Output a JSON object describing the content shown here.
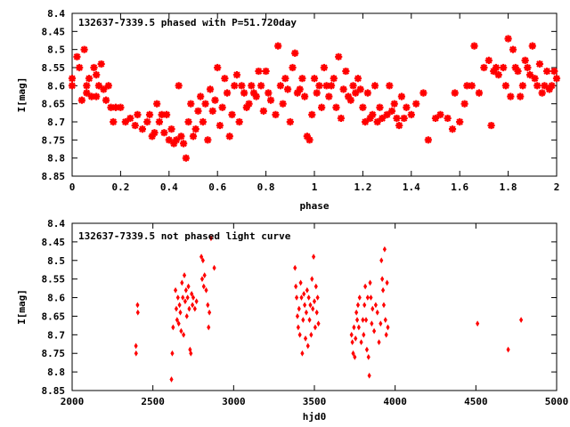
{
  "chart_data": [
    {
      "type": "scatter",
      "title": "132637-7339.5 phased with P=51.720day",
      "xlabel": "phase",
      "ylabel": "I[mag]",
      "xlim": [
        0,
        2
      ],
      "ylim": [
        8.4,
        8.85
      ],
      "y_inverted": true,
      "x_ticks": [
        "0",
        "0.2",
        "0.4",
        "0.6",
        "0.8",
        "1",
        "1.2",
        "1.4",
        "1.6",
        "1.8",
        "2"
      ],
      "y_ticks": [
        "8.4",
        "8.45",
        "8.5",
        "8.55",
        "8.6",
        "8.65",
        "8.7",
        "8.75",
        "8.8",
        "8.85"
      ],
      "grid": false,
      "marker": "star",
      "color": "#ff0000",
      "points": [
        [
          0.0,
          8.58
        ],
        [
          0.0,
          8.6
        ],
        [
          0.02,
          8.52
        ],
        [
          0.03,
          8.55
        ],
        [
          0.04,
          8.64
        ],
        [
          0.05,
          8.5
        ],
        [
          0.06,
          8.6
        ],
        [
          0.06,
          8.62
        ],
        [
          0.07,
          8.58
        ],
        [
          0.08,
          8.63
        ],
        [
          0.09,
          8.55
        ],
        [
          0.1,
          8.57
        ],
        [
          0.1,
          8.63
        ],
        [
          0.11,
          8.6
        ],
        [
          0.12,
          8.54
        ],
        [
          0.13,
          8.61
        ],
        [
          0.14,
          8.64
        ],
        [
          0.15,
          8.6
        ],
        [
          0.16,
          8.66
        ],
        [
          0.17,
          8.7
        ],
        [
          0.18,
          8.66
        ],
        [
          0.2,
          8.66
        ],
        [
          0.22,
          8.7
        ],
        [
          0.24,
          8.69
        ],
        [
          0.26,
          8.71
        ],
        [
          0.27,
          8.68
        ],
        [
          0.29,
          8.72
        ],
        [
          0.31,
          8.7
        ],
        [
          0.32,
          8.68
        ],
        [
          0.33,
          8.74
        ],
        [
          0.34,
          8.73
        ],
        [
          0.35,
          8.65
        ],
        [
          0.36,
          8.7
        ],
        [
          0.37,
          8.68
        ],
        [
          0.38,
          8.73
        ],
        [
          0.39,
          8.68
        ],
        [
          0.4,
          8.75
        ],
        [
          0.41,
          8.72
        ],
        [
          0.42,
          8.76
        ],
        [
          0.43,
          8.75
        ],
        [
          0.44,
          8.6
        ],
        [
          0.45,
          8.74
        ],
        [
          0.46,
          8.76
        ],
        [
          0.47,
          8.8
        ],
        [
          0.48,
          8.7
        ],
        [
          0.49,
          8.65
        ],
        [
          0.5,
          8.74
        ],
        [
          0.51,
          8.72
        ],
        [
          0.52,
          8.67
        ],
        [
          0.53,
          8.63
        ],
        [
          0.54,
          8.7
        ],
        [
          0.55,
          8.65
        ],
        [
          0.56,
          8.75
        ],
        [
          0.57,
          8.61
        ],
        [
          0.58,
          8.67
        ],
        [
          0.59,
          8.64
        ],
        [
          0.6,
          8.55
        ],
        [
          0.61,
          8.71
        ],
        [
          0.62,
          8.66
        ],
        [
          0.63,
          8.58
        ],
        [
          0.64,
          8.62
        ],
        [
          0.65,
          8.74
        ],
        [
          0.66,
          8.68
        ],
        [
          0.67,
          8.6
        ],
        [
          0.68,
          8.57
        ],
        [
          0.69,
          8.7
        ],
        [
          0.7,
          8.6
        ],
        [
          0.71,
          8.62
        ],
        [
          0.72,
          8.66
        ],
        [
          0.73,
          8.65
        ],
        [
          0.74,
          8.6
        ],
        [
          0.75,
          8.62
        ],
        [
          0.76,
          8.63
        ],
        [
          0.77,
          8.56
        ],
        [
          0.78,
          8.6
        ],
        [
          0.79,
          8.67
        ],
        [
          0.8,
          8.56
        ],
        [
          0.81,
          8.62
        ],
        [
          0.82,
          8.64
        ],
        [
          0.84,
          8.68
        ],
        [
          0.85,
          8.49
        ],
        [
          0.86,
          8.6
        ],
        [
          0.87,
          8.65
        ],
        [
          0.88,
          8.58
        ],
        [
          0.89,
          8.61
        ],
        [
          0.9,
          8.7
        ],
        [
          0.91,
          8.55
        ],
        [
          0.92,
          8.51
        ],
        [
          0.93,
          8.62
        ],
        [
          0.94,
          8.61
        ],
        [
          0.95,
          8.58
        ],
        [
          0.96,
          8.63
        ],
        [
          0.97,
          8.74
        ],
        [
          0.98,
          8.75
        ],
        [
          0.99,
          8.68
        ],
        [
          1.0,
          8.58
        ],
        [
          1.01,
          8.62
        ],
        [
          1.02,
          8.6
        ],
        [
          1.03,
          8.66
        ],
        [
          1.04,
          8.55
        ],
        [
          1.05,
          8.6
        ],
        [
          1.06,
          8.63
        ],
        [
          1.07,
          8.6
        ],
        [
          1.08,
          8.58
        ],
        [
          1.09,
          8.66
        ],
        [
          1.1,
          8.52
        ],
        [
          1.11,
          8.69
        ],
        [
          1.12,
          8.61
        ],
        [
          1.13,
          8.56
        ],
        [
          1.14,
          8.63
        ],
        [
          1.15,
          8.64
        ],
        [
          1.16,
          8.6
        ],
        [
          1.17,
          8.62
        ],
        [
          1.18,
          8.58
        ],
        [
          1.19,
          8.61
        ],
        [
          1.2,
          8.66
        ],
        [
          1.21,
          8.7
        ],
        [
          1.22,
          8.62
        ],
        [
          1.23,
          8.69
        ],
        [
          1.24,
          8.68
        ],
        [
          1.25,
          8.6
        ],
        [
          1.26,
          8.7
        ],
        [
          1.27,
          8.66
        ],
        [
          1.28,
          8.69
        ],
        [
          1.3,
          8.68
        ],
        [
          1.31,
          8.6
        ],
        [
          1.32,
          8.67
        ],
        [
          1.33,
          8.65
        ],
        [
          1.34,
          8.69
        ],
        [
          1.35,
          8.71
        ],
        [
          1.36,
          8.63
        ],
        [
          1.37,
          8.69
        ],
        [
          1.38,
          8.66
        ],
        [
          1.4,
          8.68
        ],
        [
          1.42,
          8.65
        ],
        [
          1.45,
          8.62
        ],
        [
          1.47,
          8.75
        ],
        [
          1.5,
          8.69
        ],
        [
          1.52,
          8.68
        ],
        [
          1.55,
          8.69
        ],
        [
          1.57,
          8.72
        ],
        [
          1.58,
          8.62
        ],
        [
          1.6,
          8.7
        ],
        [
          1.62,
          8.65
        ],
        [
          1.63,
          8.6
        ],
        [
          1.65,
          8.6
        ],
        [
          1.66,
          8.49
        ],
        [
          1.68,
          8.62
        ],
        [
          1.7,
          8.55
        ],
        [
          1.72,
          8.53
        ],
        [
          1.73,
          8.71
        ],
        [
          1.74,
          8.56
        ],
        [
          1.75,
          8.55
        ],
        [
          1.76,
          8.57
        ],
        [
          1.78,
          8.55
        ],
        [
          1.79,
          8.6
        ],
        [
          1.8,
          8.47
        ],
        [
          1.81,
          8.63
        ],
        [
          1.82,
          8.5
        ],
        [
          1.83,
          8.55
        ],
        [
          1.84,
          8.56
        ],
        [
          1.85,
          8.63
        ],
        [
          1.86,
          8.6
        ],
        [
          1.87,
          8.53
        ],
        [
          1.88,
          8.55
        ],
        [
          1.89,
          8.57
        ],
        [
          1.9,
          8.49
        ],
        [
          1.91,
          8.58
        ],
        [
          1.92,
          8.6
        ],
        [
          1.93,
          8.54
        ],
        [
          1.94,
          8.62
        ],
        [
          1.95,
          8.6
        ],
        [
          1.96,
          8.56
        ],
        [
          1.97,
          8.61
        ],
        [
          1.98,
          8.6
        ],
        [
          1.99,
          8.56
        ],
        [
          2.0,
          8.58
        ]
      ]
    },
    {
      "type": "scatter",
      "title": "132637-7339.5 not phased light curve",
      "xlabel": "hjd0",
      "ylabel": "I[mag]",
      "xlim": [
        2000,
        5000
      ],
      "ylim": [
        8.4,
        8.85
      ],
      "y_inverted": true,
      "x_ticks": [
        "2000",
        "2500",
        "3000",
        "3500",
        "4000",
        "4500",
        "5000"
      ],
      "y_ticks": [
        "8.4",
        "8.45",
        "8.5",
        "8.55",
        "8.6",
        "8.65",
        "8.7",
        "8.75",
        "8.8",
        "8.85"
      ],
      "grid": false,
      "marker": "diamond",
      "color": "#ff0000",
      "points": [
        [
          2395,
          8.73
        ],
        [
          2396,
          8.75
        ],
        [
          2405,
          8.62
        ],
        [
          2407,
          8.64
        ],
        [
          2615,
          8.82
        ],
        [
          2620,
          8.75
        ],
        [
          2625,
          8.68
        ],
        [
          2640,
          8.58
        ],
        [
          2645,
          8.63
        ],
        [
          2650,
          8.66
        ],
        [
          2655,
          8.6
        ],
        [
          2660,
          8.67
        ],
        [
          2665,
          8.62
        ],
        [
          2670,
          8.64
        ],
        [
          2675,
          8.69
        ],
        [
          2680,
          8.56
        ],
        [
          2685,
          8.6
        ],
        [
          2690,
          8.7
        ],
        [
          2695,
          8.54
        ],
        [
          2700,
          8.61
        ],
        [
          2705,
          8.58
        ],
        [
          2710,
          8.65
        ],
        [
          2715,
          8.6
        ],
        [
          2720,
          8.57
        ],
        [
          2725,
          8.63
        ],
        [
          2730,
          8.74
        ],
        [
          2735,
          8.75
        ],
        [
          2740,
          8.59
        ],
        [
          2745,
          8.62
        ],
        [
          2750,
          8.6
        ],
        [
          2760,
          8.63
        ],
        [
          2770,
          8.61
        ],
        [
          2800,
          8.49
        ],
        [
          2805,
          8.55
        ],
        [
          2810,
          8.5
        ],
        [
          2815,
          8.57
        ],
        [
          2820,
          8.54
        ],
        [
          2830,
          8.58
        ],
        [
          2840,
          8.62
        ],
        [
          2845,
          8.68
        ],
        [
          2850,
          8.64
        ],
        [
          2860,
          8.44
        ],
        [
          2880,
          8.52
        ],
        [
          3380,
          8.52
        ],
        [
          3385,
          8.57
        ],
        [
          3390,
          8.6
        ],
        [
          3395,
          8.65
        ],
        [
          3400,
          8.68
        ],
        [
          3405,
          8.63
        ],
        [
          3410,
          8.7
        ],
        [
          3415,
          8.56
        ],
        [
          3420,
          8.6
        ],
        [
          3425,
          8.75
        ],
        [
          3430,
          8.66
        ],
        [
          3435,
          8.59
        ],
        [
          3440,
          8.62
        ],
        [
          3445,
          8.71
        ],
        [
          3450,
          8.64
        ],
        [
          3455,
          8.58
        ],
        [
          3460,
          8.73
        ],
        [
          3465,
          8.6
        ],
        [
          3470,
          8.66
        ],
        [
          3475,
          8.62
        ],
        [
          3480,
          8.7
        ],
        [
          3485,
          8.55
        ],
        [
          3490,
          8.63
        ],
        [
          3495,
          8.49
        ],
        [
          3500,
          8.61
        ],
        [
          3505,
          8.68
        ],
        [
          3510,
          8.57
        ],
        [
          3515,
          8.64
        ],
        [
          3520,
          8.6
        ],
        [
          3525,
          8.67
        ],
        [
          3730,
          8.7
        ],
        [
          3735,
          8.72
        ],
        [
          3740,
          8.75
        ],
        [
          3745,
          8.68
        ],
        [
          3750,
          8.76
        ],
        [
          3755,
          8.71
        ],
        [
          3760,
          8.64
        ],
        [
          3765,
          8.66
        ],
        [
          3770,
          8.62
        ],
        [
          3775,
          8.68
        ],
        [
          3780,
          8.6
        ],
        [
          3790,
          8.72
        ],
        [
          3800,
          8.66
        ],
        [
          3805,
          8.7
        ],
        [
          3810,
          8.62
        ],
        [
          3815,
          8.57
        ],
        [
          3820,
          8.66
        ],
        [
          3825,
          8.74
        ],
        [
          3830,
          8.6
        ],
        [
          3835,
          8.76
        ],
        [
          3840,
          8.81
        ],
        [
          3845,
          8.56
        ],
        [
          3850,
          8.6
        ],
        [
          3855,
          8.67
        ],
        [
          3860,
          8.63
        ],
        [
          3870,
          8.69
        ],
        [
          3880,
          8.62
        ],
        [
          3890,
          8.64
        ],
        [
          3900,
          8.72
        ],
        [
          3910,
          8.67
        ],
        [
          3915,
          8.5
        ],
        [
          3920,
          8.55
        ],
        [
          3925,
          8.58
        ],
        [
          3930,
          8.62
        ],
        [
          3935,
          8.47
        ],
        [
          3940,
          8.66
        ],
        [
          3945,
          8.7
        ],
        [
          3950,
          8.56
        ],
        [
          3955,
          8.68
        ],
        [
          4510,
          8.67
        ],
        [
          4700,
          8.74
        ],
        [
          4780,
          8.66
        ]
      ]
    }
  ]
}
